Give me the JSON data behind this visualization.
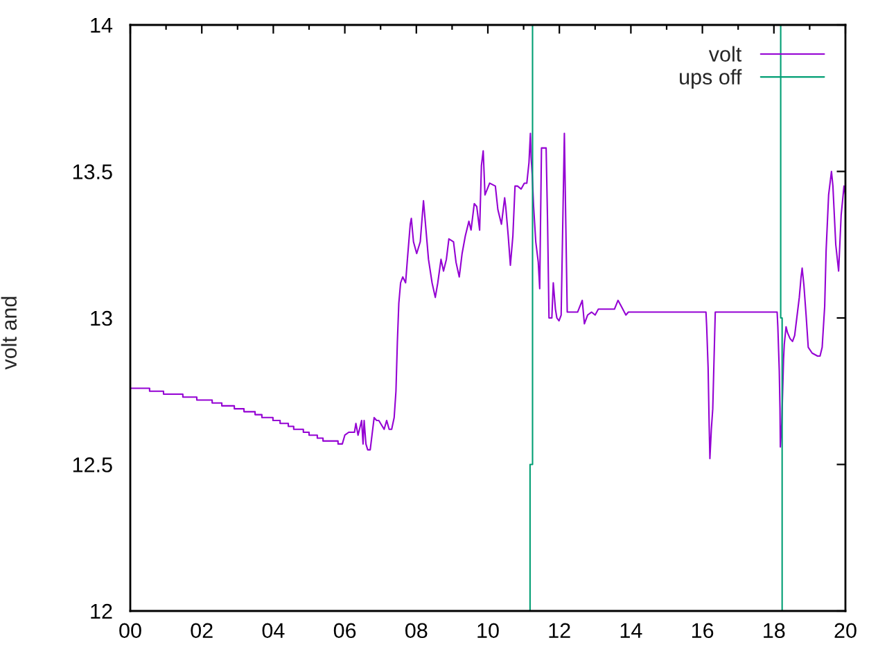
{
  "chart_data": {
    "type": "line",
    "ylabel": "volt and",
    "xlim": [
      0,
      20
    ],
    "xticks": [
      {
        "value": 0,
        "label": "00"
      },
      {
        "value": 1,
        "label": null
      },
      {
        "value": 2,
        "label": "02"
      },
      {
        "value": 3,
        "label": null
      },
      {
        "value": 4,
        "label": "04"
      },
      {
        "value": 5,
        "label": null
      },
      {
        "value": 6,
        "label": "06"
      },
      {
        "value": 7,
        "label": null
      },
      {
        "value": 8,
        "label": "08"
      },
      {
        "value": 9,
        "label": null
      },
      {
        "value": 10,
        "label": "10"
      },
      {
        "value": 11,
        "label": null
      },
      {
        "value": 12,
        "label": "12"
      },
      {
        "value": 13,
        "label": null
      },
      {
        "value": 14,
        "label": "14"
      },
      {
        "value": 15,
        "label": null
      },
      {
        "value": 16,
        "label": "16"
      },
      {
        "value": 17,
        "label": null
      },
      {
        "value": 18,
        "label": "18"
      },
      {
        "value": 19,
        "label": null
      },
      {
        "value": 20,
        "label": "20"
      }
    ],
    "ylim": [
      12,
      14
    ],
    "yticks": [
      12,
      12.5,
      13,
      13.5,
      14
    ],
    "legend": "top right",
    "series": [
      {
        "name": "volt",
        "color": "#9400d3",
        "x": [
          0,
          0.54,
          0.54,
          0.93,
          0.93,
          1.47,
          1.47,
          1.86,
          1.86,
          2.29,
          2.29,
          2.56,
          2.56,
          2.91,
          2.91,
          3.18,
          3.18,
          3.49,
          3.49,
          3.68,
          3.68,
          3.99,
          3.99,
          4.19,
          4.19,
          4.42,
          4.42,
          4.57,
          4.57,
          4.84,
          4.84,
          5.0,
          5.0,
          5.23,
          5.23,
          5.39,
          5.39,
          5.81,
          5.81,
          5.93,
          6.0,
          6.11,
          6.27,
          6.31,
          6.37,
          6.47,
          6.51,
          6.54,
          6.59,
          6.64,
          6.71,
          6.76,
          6.82,
          6.89,
          6.95,
          7.1,
          7.17,
          7.24,
          7.31,
          7.38,
          7.43,
          7.47,
          7.51,
          7.56,
          7.62,
          7.7,
          7.75,
          7.83,
          7.86,
          7.92,
          8.01,
          8.11,
          8.18,
          8.2,
          8.27,
          8.34,
          8.44,
          8.53,
          8.6,
          8.69,
          8.76,
          8.84,
          8.91,
          9.04,
          9.11,
          9.2,
          9.28,
          9.37,
          9.47,
          9.53,
          9.62,
          9.69,
          9.77,
          9.82,
          9.87,
          9.92,
          10.05,
          10.21,
          10.28,
          10.38,
          10.47,
          10.5,
          10.57,
          10.63,
          10.7,
          10.76,
          10.83,
          10.93,
          11.02,
          11.09,
          11.15,
          11.19,
          11.21,
          11.24,
          11.28,
          11.34,
          11.41,
          11.45,
          11.5,
          11.63,
          11.67,
          11.71,
          11.79,
          11.83,
          11.89,
          11.93,
          11.99,
          12.05,
          12.14,
          12.18,
          12.22,
          12.31,
          12.51,
          12.64,
          12.7,
          12.79,
          12.9,
          13.0,
          13.09,
          13.18,
          13.54,
          13.64,
          13.73,
          13.86,
          13.93,
          16.1,
          16.12,
          16.16,
          16.19,
          16.21,
          16.25,
          16.29,
          16.33,
          16.36,
          18.09,
          18.11,
          18.15,
          18.17,
          18.18,
          18.22,
          18.27,
          18.29,
          18.34,
          18.38,
          18.45,
          18.52,
          18.58,
          18.64,
          18.71,
          18.76,
          18.79,
          18.84,
          18.9,
          18.96,
          19.07,
          19.22,
          19.29,
          19.35,
          19.42,
          19.46,
          19.53,
          19.61,
          19.65,
          19.73,
          19.81,
          19.88,
          19.96,
          20.0
        ],
        "values": [
          12.76,
          12.76,
          12.75,
          12.75,
          12.74,
          12.74,
          12.73,
          12.73,
          12.72,
          12.72,
          12.71,
          12.71,
          12.7,
          12.7,
          12.69,
          12.69,
          12.68,
          12.68,
          12.67,
          12.67,
          12.66,
          12.66,
          12.65,
          12.65,
          12.64,
          12.64,
          12.63,
          12.63,
          12.62,
          12.62,
          12.61,
          12.61,
          12.6,
          12.6,
          12.59,
          12.59,
          12.58,
          12.58,
          12.57,
          12.57,
          12.6,
          12.61,
          12.61,
          12.64,
          12.6,
          12.65,
          12.57,
          12.65,
          12.57,
          12.55,
          12.55,
          12.6,
          12.66,
          12.65,
          12.65,
          12.62,
          12.65,
          12.62,
          12.62,
          12.66,
          12.75,
          12.92,
          13.05,
          13.12,
          13.14,
          13.12,
          13.2,
          13.32,
          13.34,
          13.26,
          13.22,
          13.26,
          13.37,
          13.4,
          13.3,
          13.2,
          13.12,
          13.07,
          13.12,
          13.2,
          13.16,
          13.2,
          13.27,
          13.26,
          13.19,
          13.14,
          13.22,
          13.28,
          13.33,
          13.3,
          13.39,
          13.38,
          13.3,
          13.52,
          13.57,
          13.42,
          13.46,
          13.45,
          13.37,
          13.32,
          13.41,
          13.38,
          13.28,
          13.18,
          13.28,
          13.45,
          13.45,
          13.44,
          13.46,
          13.46,
          13.53,
          13.63,
          13.55,
          13.49,
          13.38,
          13.26,
          13.19,
          13.1,
          13.58,
          13.58,
          13.33,
          13.0,
          13.0,
          13.12,
          13.03,
          13.0,
          12.99,
          13.01,
          13.63,
          13.32,
          13.02,
          13.02,
          13.02,
          13.06,
          12.98,
          13.01,
          13.02,
          13.01,
          13.03,
          13.03,
          13.03,
          13.06,
          13.04,
          13.01,
          13.02,
          13.02,
          12.97,
          12.83,
          12.63,
          12.52,
          12.62,
          12.69,
          12.88,
          13.02,
          13.02,
          12.97,
          12.82,
          12.69,
          12.56,
          12.64,
          12.86,
          12.91,
          12.97,
          12.95,
          12.93,
          12.92,
          12.94,
          13.0,
          13.07,
          13.14,
          13.17,
          13.11,
          13.01,
          12.9,
          12.88,
          12.87,
          12.87,
          12.9,
          13.04,
          13.23,
          13.42,
          13.5,
          13.45,
          13.25,
          13.16,
          13.35,
          13.45,
          13.42
        ]
      },
      {
        "name": "ups off",
        "color": "#009e73",
        "x": [
          11.18,
          11.18,
          11.25,
          11.25,
          null,
          18.19,
          18.19,
          18.23,
          18.23
        ],
        "values": [
          12,
          12.5,
          12.5,
          14,
          null,
          14,
          13.0,
          13.0,
          12
        ]
      }
    ]
  }
}
